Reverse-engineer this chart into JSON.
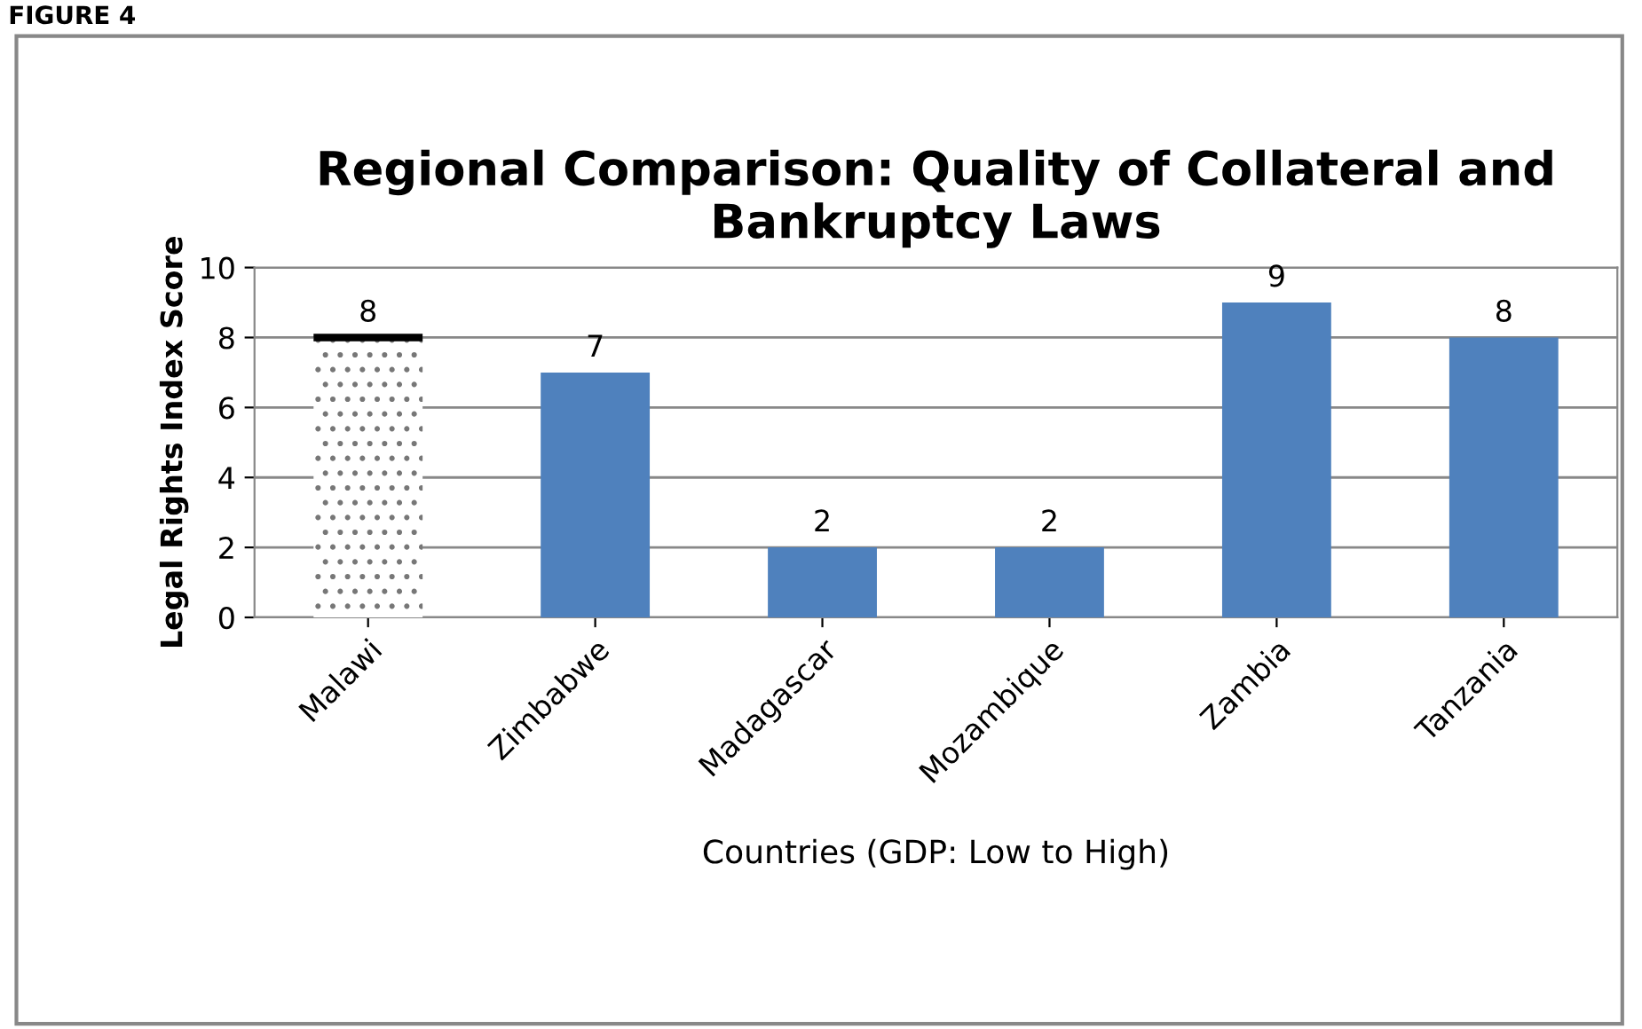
{
  "chart_data": {
    "type": "bar",
    "title": "Regional Comparison: Quality of Collateral and\nBankruptcy Laws",
    "xlabel": "Countries (GDP: Low to High)",
    "ylabel": "Legal Rights Index Score",
    "annotations": [
      "FIGURE 4"
    ],
    "categories": [
      "Malawi",
      "Zimbabwe",
      "Madagascar",
      "Mozambique",
      "Zambia",
      "Tanzania"
    ],
    "values": [
      8,
      7,
      2,
      2,
      9,
      8
    ],
    "colors": [
      "#ffffff",
      "#4f81bd",
      "#4f81bd",
      "#4f81bd",
      "#4f81bd",
      "#4f81bd"
    ],
    "ylim": [
      0,
      10
    ],
    "yticks": [
      0,
      2,
      4,
      6,
      8,
      10
    ],
    "grid": "y",
    "data_labels": true,
    "legend": false
  }
}
